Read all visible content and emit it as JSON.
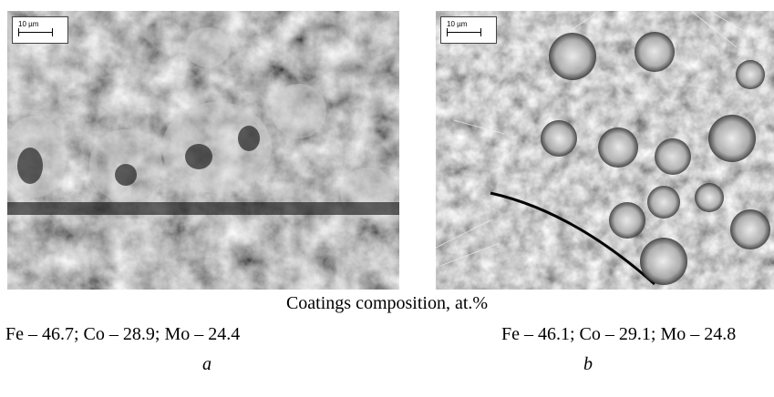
{
  "figure": {
    "panels": [
      {
        "scale_bar": "10 µm",
        "composition": "Fe – 46.7; Co – 28.9; Mo – 24.4",
        "label": "a"
      },
      {
        "scale_bar": "10 µm",
        "composition": "Fe – 46.1; Co – 29.1; Mo – 24.8",
        "label": "b"
      }
    ],
    "caption": "Coatings composition, at.%"
  }
}
